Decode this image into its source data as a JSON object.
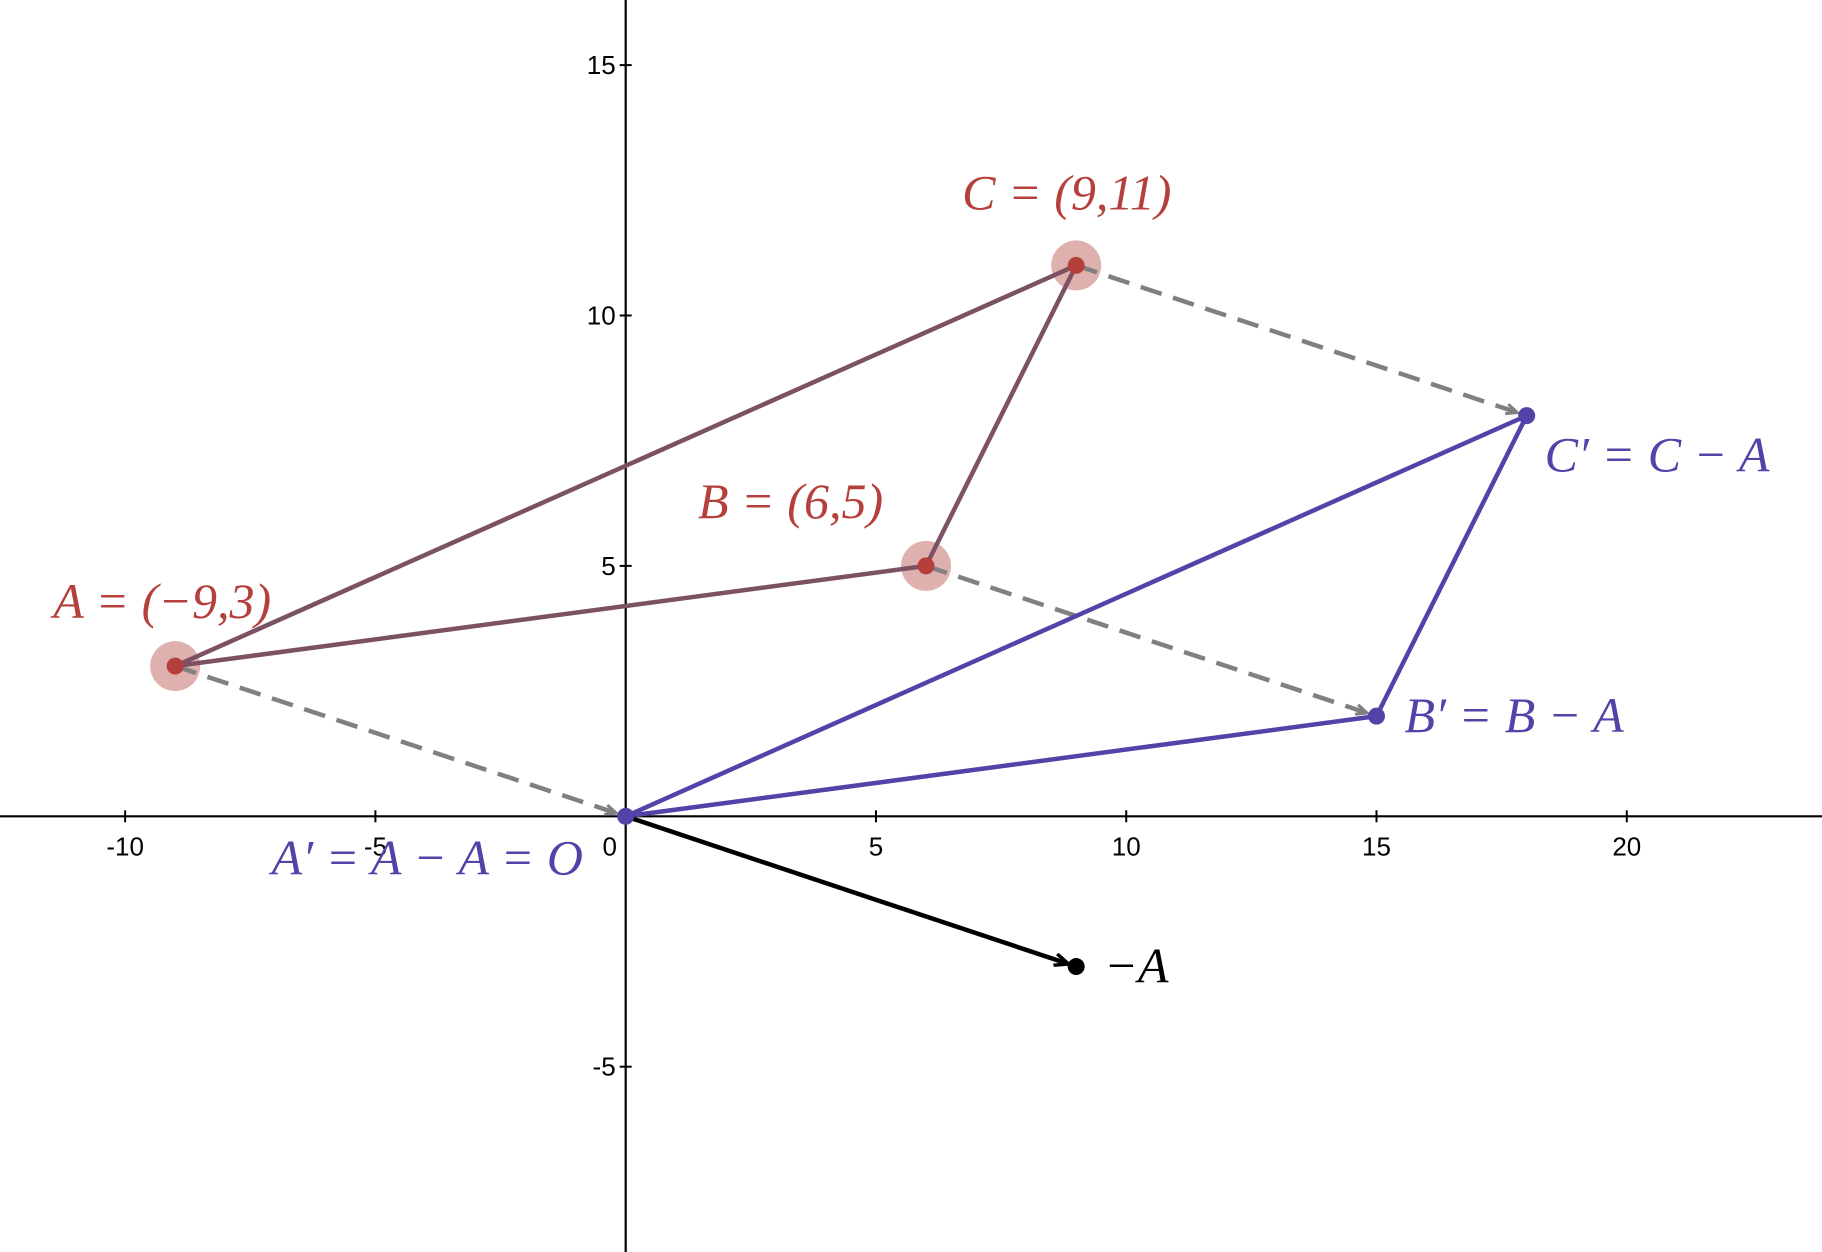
{
  "chart_data": {
    "type": "scatter",
    "xlim": [
      -12.5,
      23.9
    ],
    "ylim": [
      -8.7,
      16.3
    ],
    "x_ticks": [
      {
        "value": -10,
        "label": "-10"
      },
      {
        "value": -5,
        "label": "-5"
      },
      {
        "value": 0,
        "label": "0"
      },
      {
        "value": 5,
        "label": "5"
      },
      {
        "value": 10,
        "label": "10"
      },
      {
        "value": 15,
        "label": "15"
      },
      {
        "value": 20,
        "label": "20"
      }
    ],
    "y_ticks": [
      {
        "value": -5,
        "label": "-5"
      },
      {
        "value": 5,
        "label": "5"
      },
      {
        "value": 10,
        "label": "10"
      },
      {
        "value": 15,
        "label": "15"
      }
    ],
    "grid": false,
    "colors": {
      "original_point": "#b5403b",
      "original_halo": "#d9a3a0",
      "original_segment": "#7b5163",
      "translated": "#5442a8",
      "translation_arrow": "#808080",
      "negative_vector": "#000000"
    },
    "original_points": [
      {
        "name": "A",
        "x": -9,
        "y": 3,
        "label": "A = (−9,3)"
      },
      {
        "name": "B",
        "x": 6,
        "y": 5,
        "label": "B = (6,5)"
      },
      {
        "name": "C",
        "x": 9,
        "y": 11,
        "label": "C = (9,11)"
      }
    ],
    "translated_points": [
      {
        "name": "A'",
        "x": 0,
        "y": 0,
        "label": "A′ = A − A = O"
      },
      {
        "name": "B'",
        "x": 15,
        "y": 2,
        "label": "B′ = B − A"
      },
      {
        "name": "C'",
        "x": 18,
        "y": 8,
        "label": "C′ = C − A"
      }
    ],
    "original_segments": [
      [
        "A",
        "B"
      ],
      [
        "A",
        "C"
      ],
      [
        "B",
        "C"
      ]
    ],
    "translated_segments": [
      [
        "A'",
        "B'"
      ],
      [
        "A'",
        "C'"
      ],
      [
        "B'",
        "C'"
      ]
    ],
    "translation_arrows": [
      [
        "A",
        "A'"
      ],
      [
        "B",
        "B'"
      ],
      [
        "C",
        "C'"
      ]
    ],
    "negative_vector": {
      "from": [
        0,
        0
      ],
      "to": [
        9,
        -3
      ],
      "label": "−A"
    }
  }
}
